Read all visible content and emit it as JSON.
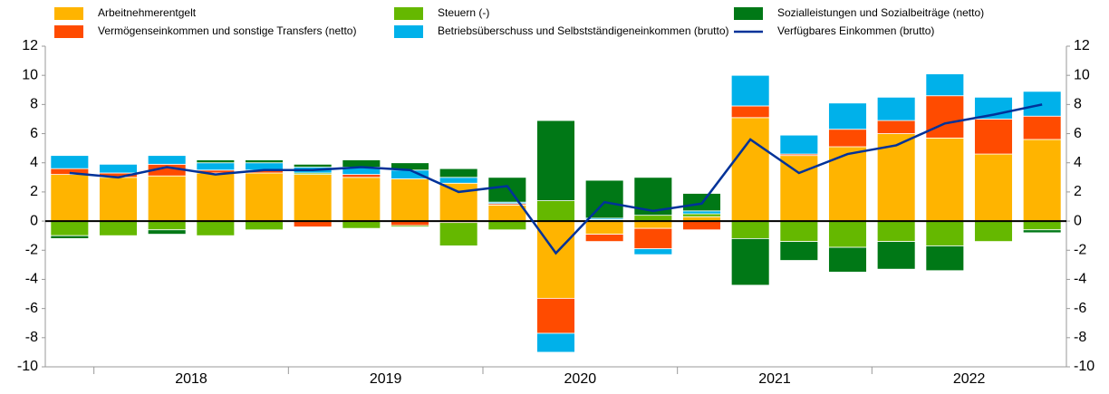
{
  "chart_data": {
    "type": "stacked_bar_line",
    "categories": [
      null,
      "2018",
      "2018",
      "2018",
      "2018",
      "2019",
      "2019",
      "2019",
      "2019",
      "2020",
      "2020",
      "2020",
      "2020",
      "2021",
      "2021",
      "2021",
      "2021",
      "2022",
      "2022",
      "2022",
      "2022"
    ],
    "series": [
      {
        "name": "Arbeitnehmerentgelt",
        "color": "#ffb400",
        "values": [
          3.2,
          3.0,
          3.1,
          3.3,
          3.3,
          3.2,
          3.0,
          2.9,
          2.6,
          1.1,
          -5.3,
          -0.9,
          -0.5,
          0.3,
          7.1,
          4.5,
          5.1,
          6.0,
          5.7,
          4.6,
          5.6
        ]
      },
      {
        "name": "Vermögenseinkommen und sonstige Transfers (netto)",
        "color": "#ff4b00",
        "values": [
          0.4,
          0.3,
          0.8,
          0.2,
          0.2,
          -0.4,
          0.2,
          -0.3,
          -0.1,
          0.1,
          -2.4,
          -0.5,
          -1.4,
          -0.6,
          0.8,
          0.1,
          1.2,
          0.9,
          2.9,
          2.4,
          1.6
        ]
      },
      {
        "name": "Steuern (-)",
        "color": "#65b800",
        "values": [
          -1.0,
          -1.0,
          -0.6,
          -1.0,
          -0.6,
          0.1,
          -0.5,
          -0.1,
          -1.6,
          -0.6,
          1.4,
          0.1,
          0.4,
          0.2,
          -1.2,
          -1.4,
          -1.8,
          -1.4,
          -1.7,
          -1.4,
          -0.6
        ]
      },
      {
        "name": "Betriebsüberschuss und Selbstständigeneinkommen (brutto)",
        "color": "#00b1ea",
        "values": [
          0.9,
          0.6,
          0.6,
          0.5,
          0.5,
          0.4,
          0.5,
          0.6,
          0.4,
          0.1,
          -1.3,
          0.1,
          -0.4,
          0.2,
          2.1,
          1.3,
          1.8,
          1.6,
          1.5,
          1.5,
          1.7
        ]
      },
      {
        "name": "Sozialleistungen und Sozialbeiträge (netto)",
        "color": "#007816",
        "values": [
          -0.2,
          0,
          -0.3,
          0.2,
          0.2,
          0.2,
          0.5,
          0.5,
          0.6,
          1.7,
          5.5,
          2.6,
          2.6,
          1.2,
          -3.2,
          -1.3,
          -1.7,
          -1.9,
          -1.7,
          0,
          -0.2
        ]
      },
      {
        "name": "Verfügbares Einkommen (brutto)",
        "color": "#003299",
        "type": "line",
        "values": [
          3.3,
          3.0,
          3.7,
          3.2,
          3.5,
          3.5,
          3.7,
          3.5,
          2.0,
          2.4,
          -2.2,
          1.3,
          0.7,
          1.2,
          5.6,
          3.3,
          4.6,
          5.2,
          6.7,
          7.3,
          8.0
        ]
      }
    ],
    "ylim": [
      -10,
      12
    ],
    "yticks": [
      -10,
      -8,
      -6,
      -4,
      -2,
      0,
      2,
      4,
      6,
      8,
      10,
      12
    ]
  }
}
